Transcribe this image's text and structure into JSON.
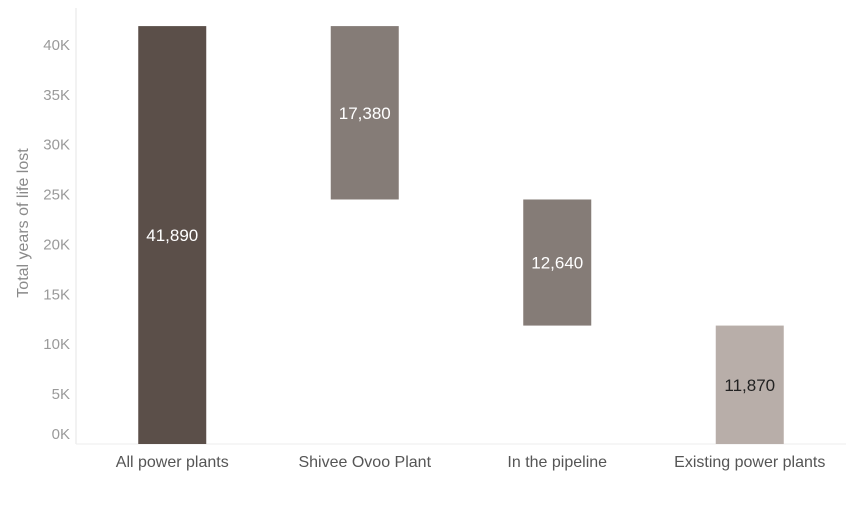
{
  "chart_data": {
    "type": "bar",
    "subtype": "waterfall",
    "title": "",
    "xlabel": "",
    "ylabel": "Total years of life lost",
    "ylim": [
      0,
      42000
    ],
    "yticks": [
      0,
      5000,
      10000,
      15000,
      20000,
      25000,
      30000,
      35000,
      40000
    ],
    "ytick_labels": [
      "0K",
      "5K",
      "10K",
      "15K",
      "20K",
      "25K",
      "30K",
      "35K",
      "40K"
    ],
    "grid": false,
    "categories": [
      "All power plants",
      "Shivee Ovoo Plant",
      "In the pipeline",
      "Existing power plants"
    ],
    "values": [
      41890,
      17380,
      12640,
      11870
    ],
    "value_labels": [
      "41,890",
      "17,380",
      "12,640",
      "11,870"
    ],
    "bar_ranges": [
      [
        0,
        41890
      ],
      [
        24510,
        41890
      ],
      [
        11870,
        24510
      ],
      [
        0,
        11870
      ]
    ],
    "colors": [
      "#5b4f49",
      "#857c77",
      "#857c77",
      "#b8aea9"
    ],
    "label_colors": [
      "#ffffff",
      "#ffffff",
      "#ffffff",
      "#222222"
    ]
  }
}
